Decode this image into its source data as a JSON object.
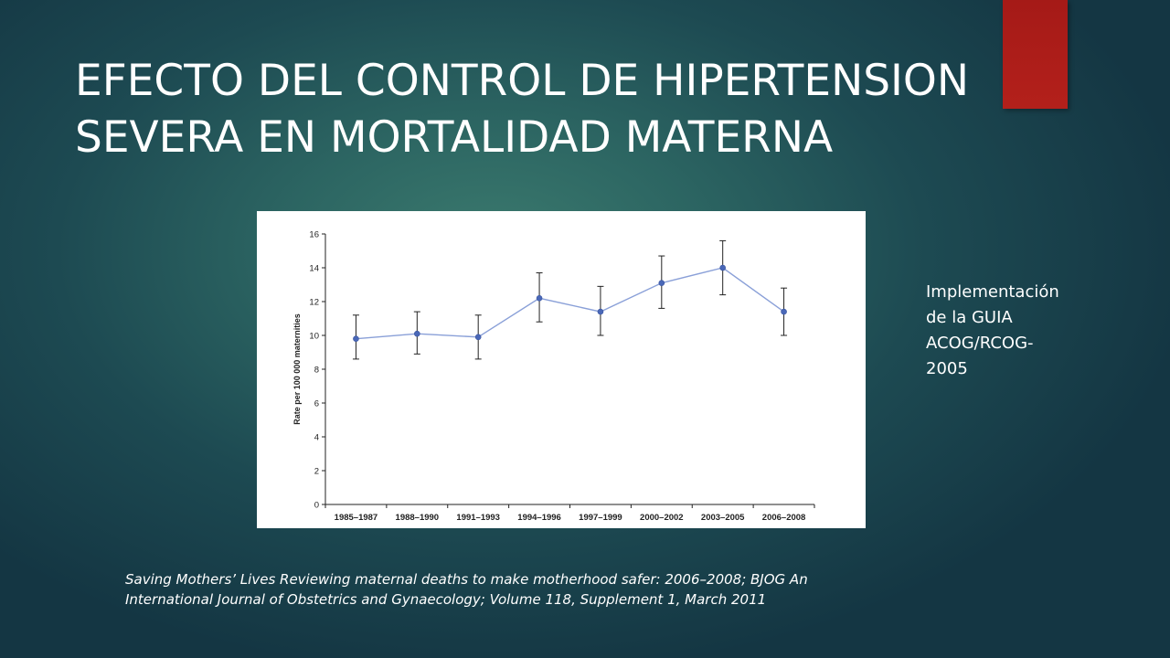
{
  "slide": {
    "title_lines": [
      "EFECTO DEL CONTROL DE HIPERTENSION",
      "SEVERA EN MORTALIDAD MATERNA"
    ],
    "side_note_lines": [
      "Implementación",
      "de la GUIA",
      "ACOG/RCOG-",
      "2005"
    ],
    "citation_lines": [
      "Saving Mothers’ Lives Reviewing maternal deaths to make motherhood safer: 2006–2008; BJOG An",
      "International Journal of Obstetrics and Gynaecology; Volume 118, Supplement 1, March 2011"
    ],
    "colors": {
      "accent": "#b01d19",
      "series": "#4a68b8",
      "series_line": "#8aa0d8",
      "text": "#ffffff"
    }
  },
  "chart_data": {
    "type": "line",
    "title": "",
    "xlabel": "",
    "ylabel": "Rate per 100 000 maternities",
    "ylim": [
      0,
      16
    ],
    "yticks": [
      0,
      2,
      4,
      6,
      8,
      10,
      12,
      14,
      16
    ],
    "categories": [
      "1985–1987",
      "1988–1990",
      "1991–1993",
      "1994–1996",
      "1997–1999",
      "2000–2002",
      "2003–2005",
      "2006–2008"
    ],
    "values": [
      9.8,
      10.1,
      9.9,
      12.2,
      11.4,
      13.1,
      14.0,
      11.4
    ],
    "error_low": [
      8.6,
      8.9,
      8.6,
      10.8,
      10.0,
      11.6,
      12.4,
      10.0
    ],
    "error_high": [
      11.2,
      11.4,
      11.2,
      13.7,
      12.9,
      14.7,
      15.6,
      12.8
    ],
    "grid": false,
    "legend": "none"
  }
}
